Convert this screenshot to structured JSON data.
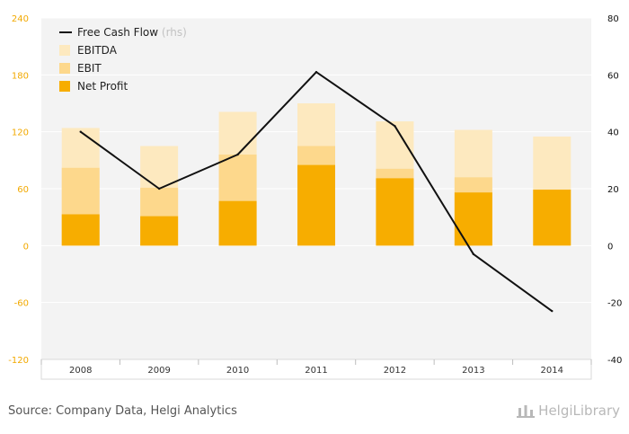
{
  "chart_data": {
    "type": "bar",
    "categories": [
      "2008",
      "2009",
      "2010",
      "2011",
      "2012",
      "2013",
      "2014"
    ],
    "series": [
      {
        "name": "EBITDA",
        "kind": "bar-overlap",
        "axis": "left",
        "color": "#fde9bf",
        "values": [
          124,
          105,
          141,
          150,
          131,
          122,
          115
        ]
      },
      {
        "name": "EBIT",
        "kind": "bar-overlap",
        "axis": "left",
        "color": "#fdd88c",
        "values": [
          82,
          61,
          96,
          105,
          81,
          72,
          null
        ]
      },
      {
        "name": "Net Profit",
        "kind": "bar-overlap",
        "axis": "left",
        "color": "#f7ad00",
        "values": [
          33,
          31,
          47,
          85,
          71,
          56,
          59
        ]
      },
      {
        "name": "Free Cash Flow",
        "kind": "line",
        "axis": "right",
        "color": "#111111",
        "values": [
          40,
          20,
          32,
          61,
          42,
          -3,
          -23
        ]
      }
    ],
    "yleft": {
      "lim": [
        -120,
        240
      ],
      "ticks": [
        "240",
        "180",
        "120",
        "60",
        "0",
        "-60",
        "-120"
      ],
      "color": "#f2a900"
    },
    "yright": {
      "lim": [
        -40,
        80
      ],
      "ticks": [
        "80",
        "60",
        "40",
        "20",
        "0",
        "-20",
        "-40"
      ]
    },
    "legend": {
      "placement": "top-left",
      "items": [
        {
          "label": "Free Cash Flow",
          "suffix": "(rhs)",
          "marker": "line",
          "color": "#111111"
        },
        {
          "label": "EBITDA",
          "marker": "box",
          "color": "#fde9bf"
        },
        {
          "label": "EBIT",
          "marker": "box",
          "color": "#fdd88c"
        },
        {
          "label": "Net Profit",
          "marker": "box",
          "color": "#f7ad00"
        }
      ]
    },
    "grid": true
  },
  "footer": {
    "source": "Source: Company Data, Helgi Analytics",
    "brand": "HelgiLibrary"
  }
}
